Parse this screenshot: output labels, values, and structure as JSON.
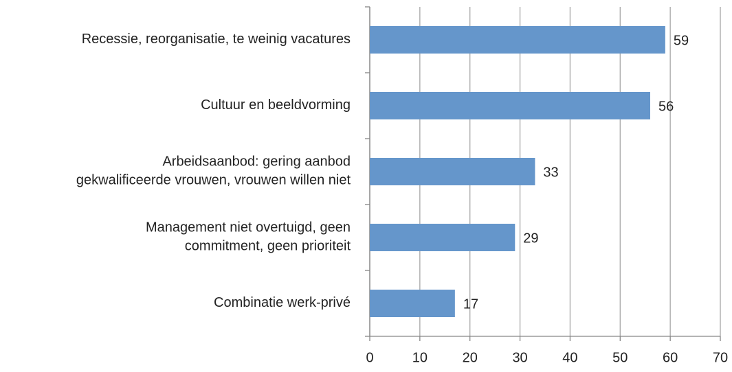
{
  "chart_data": {
    "type": "barh",
    "categories": [
      [
        "Recessie, reorganisatie, te weinig vacatures"
      ],
      [
        "Cultuur en beeldvorming"
      ],
      [
        "Arbeidsaanbod: gering aanbod",
        "gekwalificeerde vrouwen, vrouwen willen niet"
      ],
      [
        "Management niet overtuigd, geen",
        "commitment, geen prioriteit"
      ],
      [
        "Combinatie werk-privé"
      ]
    ],
    "values": [
      59,
      56,
      33,
      29,
      17
    ],
    "color": "#6596cb",
    "xlim": [
      0,
      70
    ],
    "xticks": [
      0,
      10,
      20,
      30,
      40,
      50,
      60,
      70
    ],
    "grid": true
  }
}
